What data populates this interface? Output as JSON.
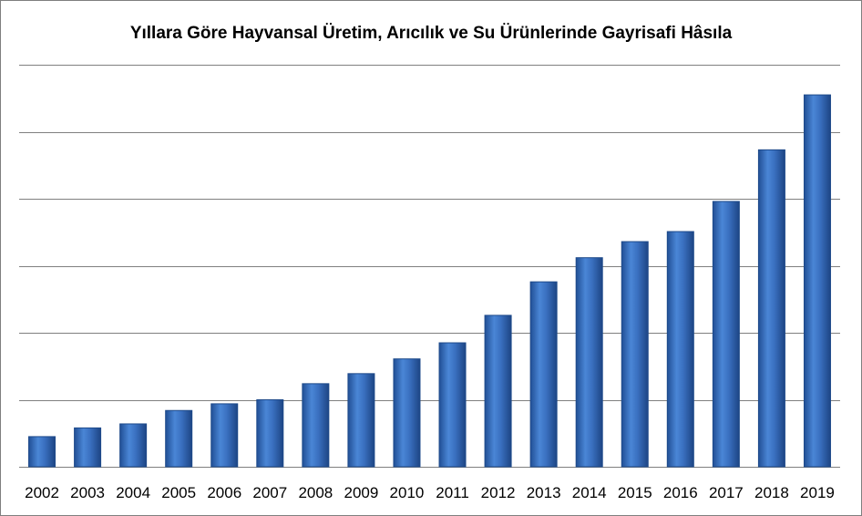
{
  "chart_data": {
    "type": "bar",
    "title": "Yıllara Göre Hayvansal Üretim, Arıcılık ve Su Ürünlerinde Gayrisafi Hâsıla",
    "xlabel": "",
    "ylabel": "",
    "categories": [
      "2002",
      "2003",
      "2004",
      "2005",
      "2006",
      "2007",
      "2008",
      "2009",
      "2010",
      "2011",
      "2012",
      "2013",
      "2014",
      "2015",
      "2016",
      "2017",
      "2018",
      "2019"
    ],
    "values": [
      4.5,
      5.8,
      6.4,
      8.4,
      9.4,
      10.0,
      12.4,
      13.9,
      16.1,
      18.5,
      22.6,
      27.6,
      31.2,
      33.6,
      35.1,
      39.6,
      47.3,
      55.5
    ],
    "ylim": [
      0,
      60
    ],
    "grid": true,
    "legend": "none",
    "colors": {
      "bar": "#3a70c0",
      "bar_dark": "#1e4a8a",
      "grid": "#808080"
    }
  }
}
